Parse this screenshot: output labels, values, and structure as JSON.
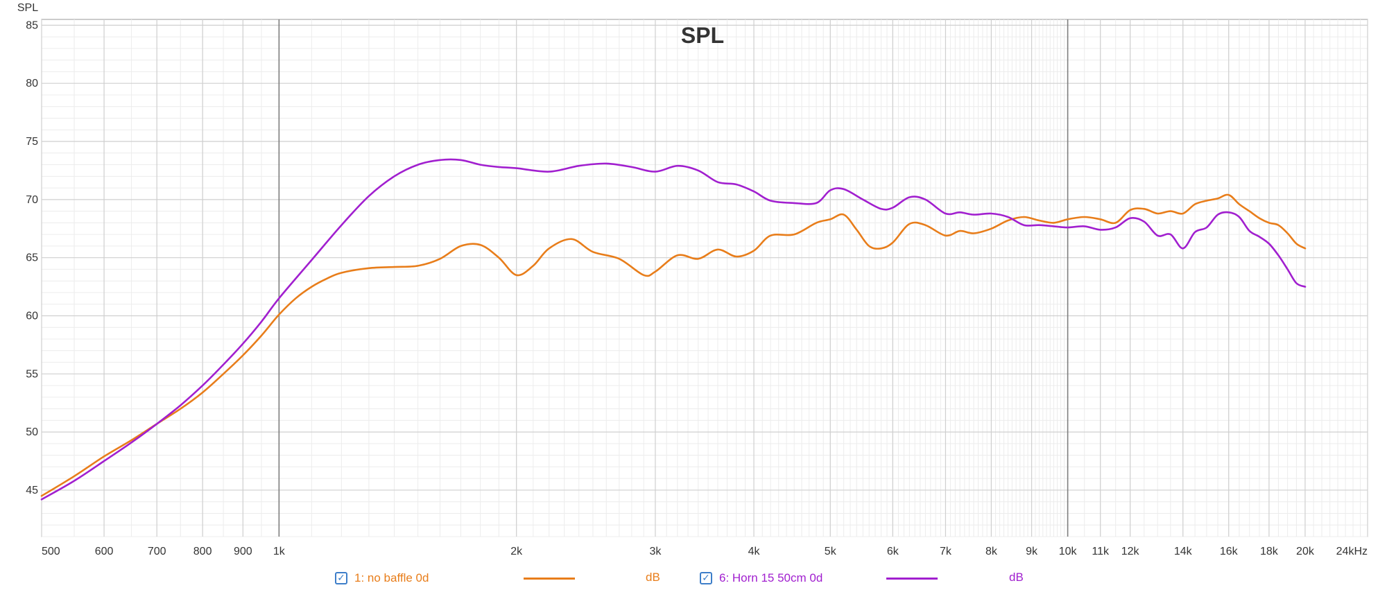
{
  "chart_data": {
    "type": "line",
    "title": "SPL",
    "ylabel": "SPL",
    "xlabel": "",
    "x_unit": "Hz",
    "x_scale": "log",
    "xlim": [
      500,
      24000
    ],
    "ylim": [
      41,
      85.5
    ],
    "grid": true,
    "legend_placement": "bottom",
    "x_tick_values": [
      500,
      600,
      700,
      800,
      900,
      1000,
      2000,
      3000,
      4000,
      5000,
      6000,
      7000,
      8000,
      9000,
      10000,
      11000,
      12000,
      14000,
      16000,
      18000,
      20000,
      24000
    ],
    "x_tick_labels": [
      "500",
      "600",
      "700",
      "800",
      "900",
      "1k",
      "2k",
      "3k",
      "4k",
      "5k",
      "6k",
      "7k",
      "8k",
      "9k",
      "10k",
      "11k",
      "12k",
      "14k",
      "16k",
      "18k",
      "20k",
      "24kHz"
    ],
    "y_tick_values": [
      45,
      50,
      55,
      60,
      65,
      70,
      75,
      80,
      85
    ],
    "y_tick_labels": [
      "45",
      "50",
      "55",
      "60",
      "65",
      "70",
      "75",
      "80",
      "85"
    ],
    "series": [
      {
        "name": "1: no baffle 0d",
        "unit": "dB",
        "color": "#e87d1a",
        "checked": true,
        "points": [
          [
            500,
            44.5
          ],
          [
            550,
            46.2
          ],
          [
            600,
            47.9
          ],
          [
            650,
            49.3
          ],
          [
            700,
            50.7
          ],
          [
            750,
            52.0
          ],
          [
            800,
            53.4
          ],
          [
            850,
            55.0
          ],
          [
            900,
            56.6
          ],
          [
            950,
            58.3
          ],
          [
            1000,
            60.1
          ],
          [
            1050,
            61.5
          ],
          [
            1100,
            62.5
          ],
          [
            1150,
            63.2
          ],
          [
            1200,
            63.7
          ],
          [
            1300,
            64.1
          ],
          [
            1400,
            64.2
          ],
          [
            1500,
            64.3
          ],
          [
            1600,
            64.9
          ],
          [
            1700,
            66.0
          ],
          [
            1800,
            66.1
          ],
          [
            1900,
            65.0
          ],
          [
            2000,
            63.5
          ],
          [
            2100,
            64.3
          ],
          [
            2200,
            65.8
          ],
          [
            2350,
            66.6
          ],
          [
            2500,
            65.5
          ],
          [
            2700,
            64.9
          ],
          [
            2900,
            63.5
          ],
          [
            3000,
            63.8
          ],
          [
            3200,
            65.2
          ],
          [
            3400,
            64.9
          ],
          [
            3600,
            65.7
          ],
          [
            3800,
            65.1
          ],
          [
            4000,
            65.6
          ],
          [
            4200,
            66.9
          ],
          [
            4500,
            67.0
          ],
          [
            4800,
            68.0
          ],
          [
            5000,
            68.3
          ],
          [
            5200,
            68.7
          ],
          [
            5400,
            67.4
          ],
          [
            5600,
            66.0
          ],
          [
            5800,
            65.8
          ],
          [
            6000,
            66.3
          ],
          [
            6300,
            67.9
          ],
          [
            6600,
            67.8
          ],
          [
            7000,
            66.9
          ],
          [
            7300,
            67.3
          ],
          [
            7600,
            67.1
          ],
          [
            8000,
            67.5
          ],
          [
            8400,
            68.2
          ],
          [
            8800,
            68.5
          ],
          [
            9200,
            68.2
          ],
          [
            9600,
            68.0
          ],
          [
            10000,
            68.3
          ],
          [
            10500,
            68.5
          ],
          [
            11000,
            68.3
          ],
          [
            11500,
            68.0
          ],
          [
            12000,
            69.1
          ],
          [
            12500,
            69.2
          ],
          [
            13000,
            68.8
          ],
          [
            13500,
            69.0
          ],
          [
            14000,
            68.8
          ],
          [
            14500,
            69.6
          ],
          [
            15000,
            69.9
          ],
          [
            15500,
            70.1
          ],
          [
            16000,
            70.4
          ],
          [
            16500,
            69.6
          ],
          [
            17000,
            69.0
          ],
          [
            17500,
            68.4
          ],
          [
            18000,
            68.0
          ],
          [
            18500,
            67.8
          ],
          [
            19000,
            67.1
          ],
          [
            19500,
            66.2
          ],
          [
            20000,
            65.8
          ]
        ]
      },
      {
        "name": "6: Horn 15 50cm 0d",
        "unit": "dB",
        "color": "#a11fcf",
        "checked": true,
        "points": [
          [
            500,
            44.2
          ],
          [
            550,
            45.8
          ],
          [
            600,
            47.5
          ],
          [
            650,
            49.1
          ],
          [
            700,
            50.7
          ],
          [
            750,
            52.3
          ],
          [
            800,
            54.0
          ],
          [
            850,
            55.8
          ],
          [
            900,
            57.6
          ],
          [
            950,
            59.5
          ],
          [
            1000,
            61.5
          ],
          [
            1100,
            64.8
          ],
          [
            1200,
            67.8
          ],
          [
            1300,
            70.3
          ],
          [
            1400,
            72.0
          ],
          [
            1500,
            73.0
          ],
          [
            1600,
            73.4
          ],
          [
            1700,
            73.4
          ],
          [
            1800,
            73.0
          ],
          [
            1900,
            72.8
          ],
          [
            2000,
            72.7
          ],
          [
            2200,
            72.4
          ],
          [
            2400,
            72.9
          ],
          [
            2600,
            73.1
          ],
          [
            2800,
            72.8
          ],
          [
            3000,
            72.4
          ],
          [
            3200,
            72.9
          ],
          [
            3400,
            72.5
          ],
          [
            3600,
            71.5
          ],
          [
            3800,
            71.3
          ],
          [
            4000,
            70.7
          ],
          [
            4200,
            69.9
          ],
          [
            4500,
            69.7
          ],
          [
            4800,
            69.7
          ],
          [
            5000,
            70.8
          ],
          [
            5200,
            70.9
          ],
          [
            5500,
            70.0
          ],
          [
            5800,
            69.2
          ],
          [
            6000,
            69.3
          ],
          [
            6300,
            70.2
          ],
          [
            6600,
            70.0
          ],
          [
            7000,
            68.8
          ],
          [
            7300,
            68.9
          ],
          [
            7600,
            68.7
          ],
          [
            8000,
            68.8
          ],
          [
            8400,
            68.5
          ],
          [
            8800,
            67.8
          ],
          [
            9200,
            67.8
          ],
          [
            9600,
            67.7
          ],
          [
            10000,
            67.6
          ],
          [
            10500,
            67.7
          ],
          [
            11000,
            67.4
          ],
          [
            11500,
            67.6
          ],
          [
            12000,
            68.4
          ],
          [
            12500,
            68.1
          ],
          [
            13000,
            66.9
          ],
          [
            13500,
            67.0
          ],
          [
            14000,
            65.8
          ],
          [
            14500,
            67.2
          ],
          [
            15000,
            67.6
          ],
          [
            15500,
            68.7
          ],
          [
            16000,
            68.9
          ],
          [
            16500,
            68.5
          ],
          [
            17000,
            67.3
          ],
          [
            17500,
            66.8
          ],
          [
            18000,
            66.2
          ],
          [
            18500,
            65.2
          ],
          [
            19000,
            64.0
          ],
          [
            19500,
            62.8
          ],
          [
            20000,
            62.5
          ]
        ]
      }
    ]
  },
  "legend": [
    {
      "label": "1: no baffle 0d",
      "unit": "dB",
      "color": "#e87d1a",
      "checked": true,
      "check_glyph": "✓"
    },
    {
      "label": "6: Horn 15 50cm 0d",
      "unit": "dB",
      "color": "#a11fcf",
      "checked": true,
      "check_glyph": "✓"
    }
  ]
}
